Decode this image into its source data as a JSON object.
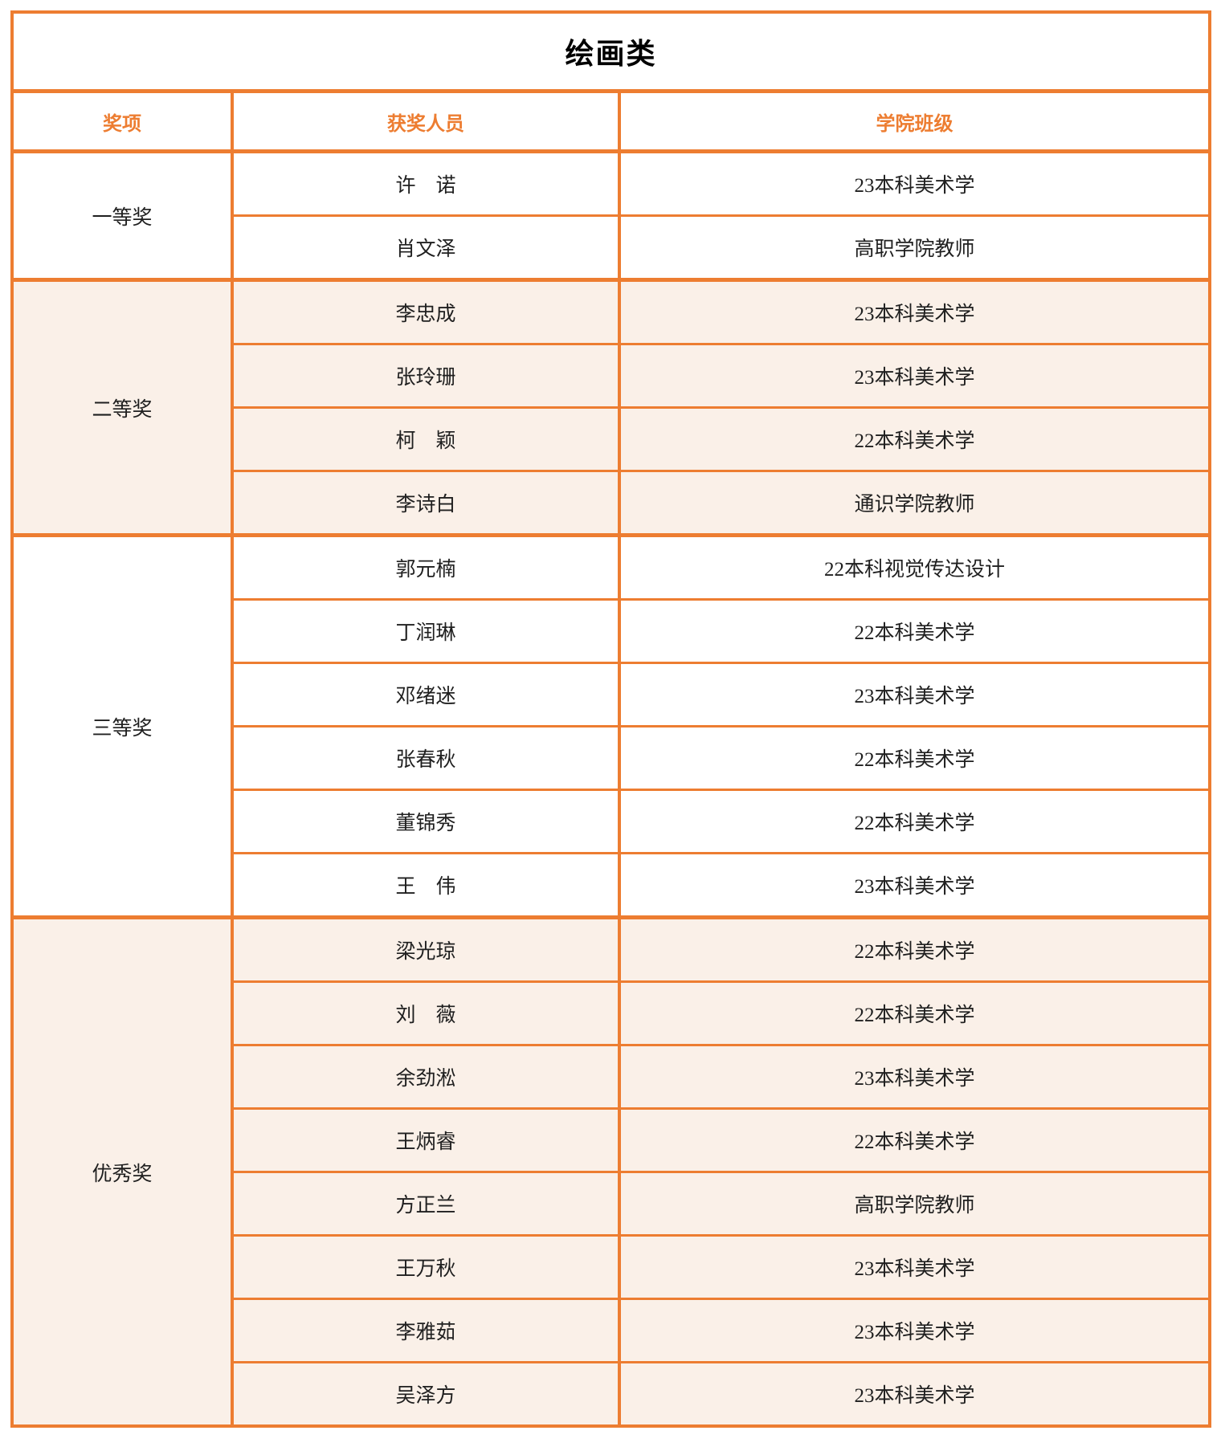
{
  "title": "绘画类",
  "columns": [
    "奖项",
    "获奖人员",
    "学院班级"
  ],
  "colors": {
    "accent_orange": "#ED7D31",
    "band_background": "#FAF0E8",
    "body_text": "#1F1F1F",
    "title_text": "#000000"
  },
  "groups": [
    {
      "award": "一等奖",
      "shaded": false,
      "rows": [
        {
          "name": "许　诺",
          "class": "23本科美术学"
        },
        {
          "name": "肖文泽",
          "class": "高职学院教师"
        }
      ]
    },
    {
      "award": "二等奖",
      "shaded": true,
      "rows": [
        {
          "name": "李忠成",
          "class": "23本科美术学"
        },
        {
          "name": "张玲珊",
          "class": "23本科美术学"
        },
        {
          "name": "柯　颖",
          "class": "22本科美术学"
        },
        {
          "name": "李诗白",
          "class": "通识学院教师"
        }
      ]
    },
    {
      "award": "三等奖",
      "shaded": false,
      "rows": [
        {
          "name": "郭元楠",
          "class": "22本科视觉传达设计"
        },
        {
          "name": "丁润琳",
          "class": "22本科美术学"
        },
        {
          "name": "邓绪迷",
          "class": "23本科美术学"
        },
        {
          "name": "张春秋",
          "class": "22本科美术学"
        },
        {
          "name": "董锦秀",
          "class": "22本科美术学"
        },
        {
          "name": "王　伟",
          "class": "23本科美术学"
        }
      ]
    },
    {
      "award": "优秀奖",
      "shaded": true,
      "rows": [
        {
          "name": "梁光琼",
          "class": "22本科美术学"
        },
        {
          "name": "刘　薇",
          "class": "22本科美术学"
        },
        {
          "name": "余劲淞",
          "class": "23本科美术学"
        },
        {
          "name": "王炳睿",
          "class": "22本科美术学"
        },
        {
          "name": "方正兰",
          "class": "高职学院教师"
        },
        {
          "name": "王万秋",
          "class": "23本科美术学"
        },
        {
          "name": "李雅茹",
          "class": "23本科美术学"
        },
        {
          "name": "吴泽方",
          "class": "23本科美术学"
        }
      ]
    }
  ]
}
